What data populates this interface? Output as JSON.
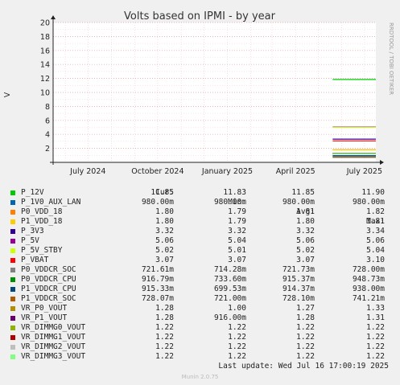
{
  "chart_data": {
    "type": "line",
    "title": "Volts based on IPMI - by year",
    "ylabel": "V",
    "ylim": [
      0,
      20
    ],
    "yticks": [
      2,
      4,
      6,
      8,
      10,
      12,
      14,
      16,
      18,
      20
    ],
    "x_ticks": [
      "July 2024",
      "October 2024",
      "January 2025",
      "April 2025",
      "July 2025"
    ],
    "x_range": [
      "2024-05-16",
      "2025-07-16"
    ],
    "data_start": "2025-05-20",
    "watermark": "RRDTOOL / TOBI OETIKER",
    "grid": true,
    "legend_columns": [
      "Cur:",
      "Min:",
      "Avg:",
      "Max:"
    ],
    "series": [
      {
        "name": "P_12V",
        "color": "#00cc00",
        "value": 11.85,
        "cur": "11.85",
        "min": "11.83",
        "avg": "11.85",
        "max": "11.90"
      },
      {
        "name": "P_1V0_AUX_LAN",
        "color": "#0066b3",
        "value": 0.98,
        "cur": "980.00m",
        "min": "980.00m",
        "avg": "980.00m",
        "max": "980.00m"
      },
      {
        "name": "P0_VDD_18",
        "color": "#ff8000",
        "value": 1.8,
        "cur": "1.80",
        "min": "1.79",
        "avg": "1.81",
        "max": "1.82"
      },
      {
        "name": "P1_VDD_18",
        "color": "#ffcc00",
        "value": 1.8,
        "cur": "1.80",
        "min": "1.79",
        "avg": "1.80",
        "max": "1.81"
      },
      {
        "name": "P_3V3",
        "color": "#330099",
        "value": 3.32,
        "cur": "3.32",
        "min": "3.32",
        "avg": "3.32",
        "max": "3.34"
      },
      {
        "name": "P_5V",
        "color": "#990099",
        "value": 5.06,
        "cur": "5.06",
        "min": "5.04",
        "avg": "5.06",
        "max": "5.06"
      },
      {
        "name": "P_5V_STBY",
        "color": "#ccff00",
        "value": 5.02,
        "cur": "5.02",
        "min": "5.01",
        "avg": "5.02",
        "max": "5.04"
      },
      {
        "name": "P_VBAT",
        "color": "#ff0000",
        "value": 3.07,
        "cur": "3.07",
        "min": "3.07",
        "avg": "3.07",
        "max": "3.10"
      },
      {
        "name": "P0_VDDCR_SOC",
        "color": "#808080",
        "value": 0.72161,
        "cur": "721.61m",
        "min": "714.28m",
        "avg": "721.73m",
        "max": "728.00m"
      },
      {
        "name": "P0_VDDCR_CPU",
        "color": "#008f00",
        "value": 0.91679,
        "cur": "916.79m",
        "min": "733.60m",
        "avg": "915.37m",
        "max": "948.73m"
      },
      {
        "name": "P1_VDDCR_CPU",
        "color": "#00487d",
        "value": 0.91533,
        "cur": "915.33m",
        "min": "699.53m",
        "avg": "914.37m",
        "max": "938.00m"
      },
      {
        "name": "P1_VDDCR_SOC",
        "color": "#b35a00",
        "value": 0.72807,
        "cur": "728.07m",
        "min": "721.00m",
        "avg": "728.10m",
        "max": "741.21m"
      },
      {
        "name": "VR_P0_VOUT",
        "color": "#b38f00",
        "value": 1.28,
        "cur": "1.28",
        "min": "1.00",
        "avg": "1.27",
        "max": "1.33"
      },
      {
        "name": "VR_P1_VOUT",
        "color": "#6b006b",
        "value": 1.28,
        "cur": "1.28",
        "min": "916.00m",
        "avg": "1.28",
        "max": "1.31"
      },
      {
        "name": "VR_DIMMG0_VOUT",
        "color": "#8fb300",
        "value": 1.22,
        "cur": "1.22",
        "min": "1.22",
        "avg": "1.22",
        "max": "1.22"
      },
      {
        "name": "VR_DIMMG1_VOUT",
        "color": "#b30000",
        "value": 1.22,
        "cur": "1.22",
        "min": "1.22",
        "avg": "1.22",
        "max": "1.22"
      },
      {
        "name": "VR_DIMMG2_VOUT",
        "color": "#bebebe",
        "value": 1.22,
        "cur": "1.22",
        "min": "1.22",
        "avg": "1.22",
        "max": "1.22"
      },
      {
        "name": "VR_DIMMG3_VOUT",
        "color": "#80ff80",
        "value": 1.22,
        "cur": "1.22",
        "min": "1.22",
        "avg": "1.22",
        "max": "1.22"
      }
    ],
    "last_update": "Last update: Wed Jul 16 17:00:19 2025",
    "footer": "Munin 2.0.75"
  }
}
